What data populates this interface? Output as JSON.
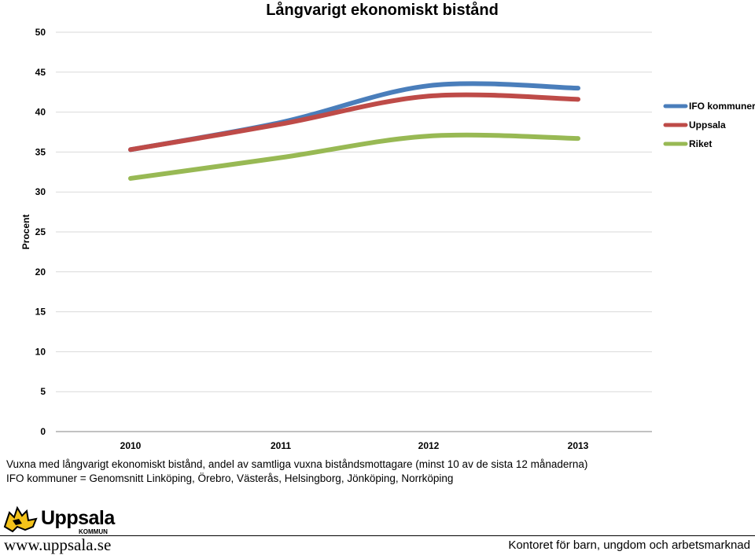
{
  "chart_data": {
    "type": "line",
    "title": "Långvarigt ekonomiskt bistånd",
    "ylabel": "Procent",
    "xlabel": "",
    "categories": [
      "2010",
      "2011",
      "2012",
      "2013"
    ],
    "ylim": [
      0,
      50
    ],
    "yticks": [
      0,
      5,
      10,
      15,
      20,
      25,
      30,
      35,
      40,
      45,
      50
    ],
    "grid": true,
    "legend_position": "right",
    "series": [
      {
        "name": "IFO kommuner",
        "color": "#4a7ebb",
        "values": [
          35.3,
          38.7,
          43.3,
          43.0
        ]
      },
      {
        "name": "Uppsala",
        "color": "#be4b48",
        "values": [
          35.3,
          38.5,
          42.0,
          41.6
        ]
      },
      {
        "name": "Riket",
        "color": "#98b954",
        "values": [
          31.7,
          34.3,
          37.0,
          36.7
        ]
      }
    ]
  },
  "captions": {
    "line1": "Vuxna med långvarigt ekonomiskt bistånd, andel av samtliga vuxna biståndsmottagare (minst 10 av de sista 12 månaderna)",
    "line2": "IFO kommuner = Genomsnitt Linköping, Örebro, Västerås, Helsingborg, Jönköping, Norrköping"
  },
  "footer": {
    "logo_text": "Uppsala",
    "logo_sub": "KOMMUN",
    "website": "www.uppsala.se",
    "department": "Kontoret för barn, ungdom och arbetsmarknad"
  }
}
